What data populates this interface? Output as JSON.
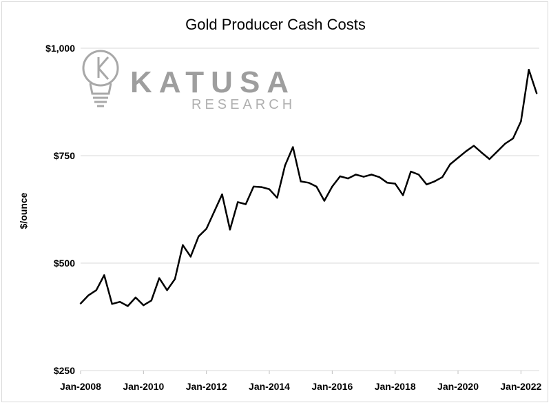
{
  "watermark": {
    "brand": "KATUSA",
    "sub": "RESEARCH",
    "icon": "lightbulb-k-icon"
  },
  "chart_data": {
    "type": "line",
    "title": "Gold Producer Cash Costs",
    "xlabel": "",
    "ylabel": "$/ounce",
    "ylim": [
      250,
      1000
    ],
    "xlim": [
      "2008-01",
      "2022-08"
    ],
    "yticks": [
      {
        "value": 250,
        "label": "$250"
      },
      {
        "value": 500,
        "label": "$500"
      },
      {
        "value": 750,
        "label": "$750"
      },
      {
        "value": 1000,
        "label": "$1,000"
      }
    ],
    "xticks": [
      {
        "value": "2008-01",
        "label": "Jan-2008"
      },
      {
        "value": "2010-01",
        "label": "Jan-2010"
      },
      {
        "value": "2012-01",
        "label": "Jan-2012"
      },
      {
        "value": "2014-01",
        "label": "Jan-2014"
      },
      {
        "value": "2016-01",
        "label": "Jan-2016"
      },
      {
        "value": "2018-01",
        "label": "Jan-2018"
      },
      {
        "value": "2020-01",
        "label": "Jan-2020"
      },
      {
        "value": "2022-01",
        "label": "Jan-2022"
      }
    ],
    "grid": true,
    "line_color": "#000000",
    "series": [
      {
        "name": "",
        "x": [
          "2008-01",
          "2008-04",
          "2008-07",
          "2008-10",
          "2009-01",
          "2009-04",
          "2009-07",
          "2009-10",
          "2010-01",
          "2010-04",
          "2010-07",
          "2010-10",
          "2011-01",
          "2011-04",
          "2011-07",
          "2011-10",
          "2012-01",
          "2012-04",
          "2012-07",
          "2012-10",
          "2013-01",
          "2013-04",
          "2013-07",
          "2013-10",
          "2014-01",
          "2014-04",
          "2014-07",
          "2014-10",
          "2015-01",
          "2015-04",
          "2015-07",
          "2015-10",
          "2016-01",
          "2016-04",
          "2016-07",
          "2016-10",
          "2017-01",
          "2017-04",
          "2017-07",
          "2017-10",
          "2018-01",
          "2018-04",
          "2018-07",
          "2018-10",
          "2019-01",
          "2019-04",
          "2019-07",
          "2019-10",
          "2020-01",
          "2020-04",
          "2020-07",
          "2020-10",
          "2021-01",
          "2021-04",
          "2021-07",
          "2021-10",
          "2022-01",
          "2022-04",
          "2022-07"
        ],
        "values": [
          406,
          425,
          437,
          472,
          405,
          410,
          400,
          420,
          402,
          413,
          465,
          437,
          463,
          542,
          515,
          562,
          580,
          620,
          660,
          578,
          642,
          637,
          678,
          677,
          672,
          652,
          727,
          770,
          690,
          687,
          678,
          645,
          678,
          702,
          697,
          706,
          701,
          706,
          700,
          687,
          685,
          658,
          713,
          706,
          683,
          690,
          700,
          730,
          745,
          760,
          773,
          757,
          742,
          760,
          778,
          790,
          830,
          950,
          895
        ]
      }
    ]
  }
}
